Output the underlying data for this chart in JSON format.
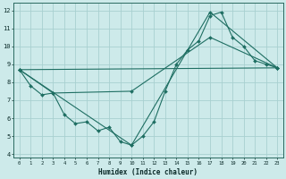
{
  "xlabel": "Humidex (Indice chaleur)",
  "xlim": [
    -0.5,
    23.5
  ],
  "ylim": [
    3.8,
    12.4
  ],
  "xticks": [
    0,
    1,
    2,
    3,
    4,
    5,
    6,
    7,
    8,
    9,
    10,
    11,
    12,
    13,
    14,
    15,
    16,
    17,
    18,
    19,
    20,
    21,
    22,
    23
  ],
  "yticks": [
    4,
    5,
    6,
    7,
    8,
    9,
    10,
    11,
    12
  ],
  "bg_color": "#cdeaea",
  "grid_color": "#a8d0d0",
  "line_color": "#1e6e62",
  "series1_x": [
    0,
    1,
    2,
    3,
    4,
    5,
    6,
    7,
    8,
    9,
    10,
    11,
    12,
    13,
    14,
    15,
    16,
    17,
    18,
    19,
    20,
    21,
    22,
    23
  ],
  "series1_y": [
    8.7,
    7.8,
    7.3,
    7.4,
    6.2,
    5.7,
    5.8,
    5.3,
    5.5,
    4.7,
    4.5,
    5.0,
    5.8,
    7.5,
    9.0,
    9.8,
    10.3,
    11.7,
    11.9,
    10.5,
    10.0,
    9.2,
    9.0,
    8.8
  ],
  "series2_x": [
    0,
    23
  ],
  "series2_y": [
    8.7,
    8.8
  ],
  "series3_x": [
    0,
    3,
    10,
    17,
    23
  ],
  "series3_y": [
    8.7,
    7.4,
    7.5,
    10.5,
    8.8
  ],
  "series4_x": [
    0,
    10,
    17,
    23
  ],
  "series4_y": [
    8.7,
    4.5,
    11.9,
    8.8
  ]
}
